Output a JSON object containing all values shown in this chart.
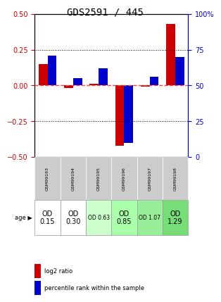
{
  "title": "GDS2591 / 445",
  "samples": [
    "GSM99193",
    "GSM99194",
    "GSM99195",
    "GSM99196",
    "GSM99197",
    "GSM99198"
  ],
  "log2_ratio": [
    0.15,
    -0.02,
    0.01,
    -0.42,
    -0.01,
    0.43
  ],
  "percentile_rank": [
    0.21,
    0.055,
    0.12,
    -0.34,
    0.065,
    0.21
  ],
  "percentile_rank_raw": [
    71,
    55,
    62,
    10,
    56,
    70
  ],
  "ylim_left": [
    -0.5,
    0.5
  ],
  "ylim_right": [
    0,
    100
  ],
  "yticks_left": [
    -0.5,
    -0.25,
    0.0,
    0.25,
    0.5
  ],
  "yticks_right": [
    0,
    25,
    50,
    75,
    100
  ],
  "dotted_lines": [
    0.25,
    -0.25
  ],
  "age_labels": [
    "OD\n0.15",
    "OD\n0.30",
    "OD 0.63",
    "OD\n0.85",
    "OD 1.07",
    "OD\n1.29"
  ],
  "age_fontsize_large": [
    true,
    true,
    false,
    true,
    false,
    true
  ],
  "cell_colors_gsm": [
    "#d0d0d0",
    "#d0d0d0",
    "#d0d0d0",
    "#d0d0d0",
    "#d0d0d0",
    "#d0d0d0"
  ],
  "cell_colors_age": [
    "#ffffff",
    "#ffffff",
    "#ccffcc",
    "#aaffaa",
    "#99ee99",
    "#77dd77"
  ],
  "bar_color_red": "#cc0000",
  "bar_color_blue": "#0000cc",
  "zero_line_color": "#ff4444",
  "dotted_color": "#000000",
  "background_color": "#ffffff",
  "left_axis_color": "#cc0000",
  "right_axis_color": "#0000cc"
}
